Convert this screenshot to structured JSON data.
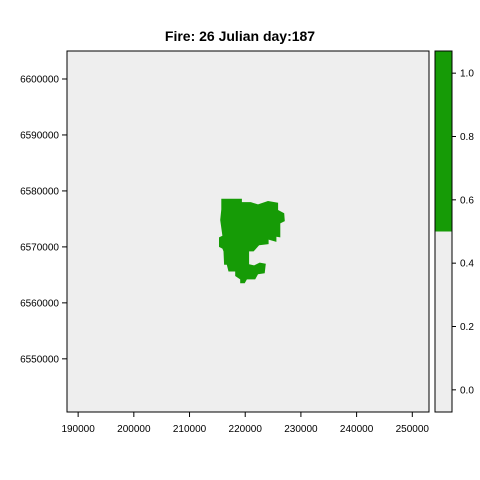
{
  "chart_data": {
    "type": "heatmap",
    "title": "Fire: 26   Julian day:187",
    "xlabel": "",
    "ylabel": "",
    "xlim": [
      188000,
      253000
    ],
    "ylim": [
      6540500,
      6605000
    ],
    "x_ticks": [
      190000,
      200000,
      210000,
      220000,
      230000,
      240000,
      250000
    ],
    "y_ticks": [
      6550000,
      6560000,
      6570000,
      6580000,
      6590000,
      6600000
    ],
    "x_tick_labels": [
      "190000",
      "200000",
      "210000",
      "220000",
      "230000",
      "240000",
      "250000"
    ],
    "y_tick_labels": [
      "6550000",
      "6560000",
      "6570000",
      "6580000",
      "6590000",
      "6600000"
    ],
    "background_value": 0,
    "background_color": "#eeeeee",
    "burned_value": 1,
    "burned_color": "#169b06",
    "burned_polygon_xy": [
      [
        215700,
        6578600
      ],
      [
        219400,
        6578600
      ],
      [
        219400,
        6578000
      ],
      [
        221000,
        6578000
      ],
      [
        222300,
        6577600
      ],
      [
        224100,
        6578200
      ],
      [
        225900,
        6577900
      ],
      [
        225900,
        6576600
      ],
      [
        227000,
        6576000
      ],
      [
        227100,
        6574600
      ],
      [
        226300,
        6574200
      ],
      [
        226300,
        6571700
      ],
      [
        225600,
        6571800
      ],
      [
        225600,
        6570900
      ],
      [
        224200,
        6571300
      ],
      [
        224200,
        6570500
      ],
      [
        222500,
        6570300
      ],
      [
        221500,
        6569200
      ],
      [
        220700,
        6569200
      ],
      [
        220700,
        6566900
      ],
      [
        221600,
        6566700
      ],
      [
        222600,
        6567200
      ],
      [
        223700,
        6567000
      ],
      [
        223500,
        6565300
      ],
      [
        222300,
        6565100
      ],
      [
        221800,
        6564200
      ],
      [
        220300,
        6564200
      ],
      [
        219900,
        6563500
      ],
      [
        219100,
        6563500
      ],
      [
        219100,
        6564200
      ],
      [
        218200,
        6564800
      ],
      [
        218200,
        6565600
      ],
      [
        217000,
        6565600
      ],
      [
        216700,
        6566800
      ],
      [
        216200,
        6566800
      ],
      [
        216100,
        6569200
      ],
      [
        215900,
        6569700
      ],
      [
        215300,
        6570000
      ],
      [
        215300,
        6571700
      ],
      [
        215900,
        6572000
      ],
      [
        215500,
        6574800
      ],
      [
        215700,
        6576700
      ]
    ],
    "colorbar": {
      "ticks": [
        0.0,
        0.2,
        0.4,
        0.6,
        0.8,
        1.0
      ],
      "tick_labels": [
        "0.0",
        "0.2",
        "0.4",
        "0.6",
        "0.8",
        "1.0"
      ],
      "range": [
        -0.07,
        1.07
      ],
      "threshold": 0.5,
      "low_color": "#eeeeee",
      "high_color": "#169b06"
    }
  }
}
